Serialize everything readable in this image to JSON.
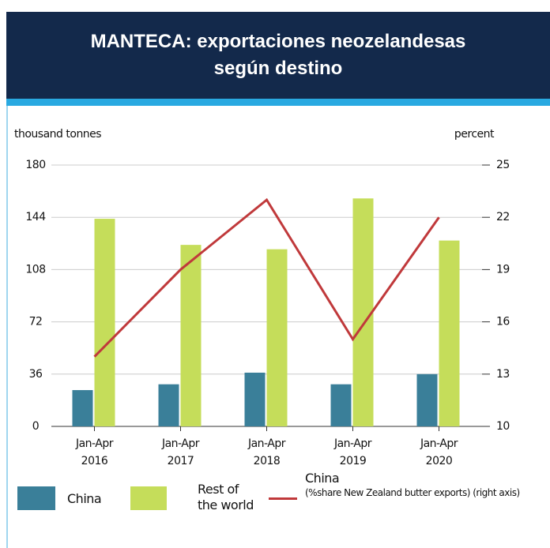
{
  "chart_data": {
    "type": "bar_line",
    "title": "MANTECA: exportaciones neozelandesas según destino",
    "y_label": "thousand tonnes",
    "y2_label": "percent",
    "categories": [
      "Jan-Apr 2016",
      "Jan-Apr 2017",
      "Jan-Apr 2018",
      "Jan-Apr 2019",
      "Jan-Apr 2020"
    ],
    "series": [
      {
        "name": "China",
        "type": "bar",
        "color": "#3a7f99",
        "values": [
          25,
          29,
          37,
          29,
          36
        ]
      },
      {
        "name": "Rest of the world",
        "type": "bar",
        "color": "#c5dd5a",
        "values": [
          143,
          125,
          122,
          157,
          128
        ]
      },
      {
        "name": "China",
        "type": "line",
        "axis": "y2",
        "color": "#c0393b",
        "note": "(%share New Zealand butter exports) (right axis)",
        "values": [
          14,
          19,
          23,
          15,
          22
        ]
      }
    ],
    "ylim": [
      0,
      180
    ],
    "yticks": [
      0,
      36,
      72,
      108,
      144,
      180
    ],
    "y2lim": [
      10,
      25
    ],
    "y2ticks": [
      10,
      13,
      16,
      19,
      22,
      25
    ],
    "grid": true
  }
}
